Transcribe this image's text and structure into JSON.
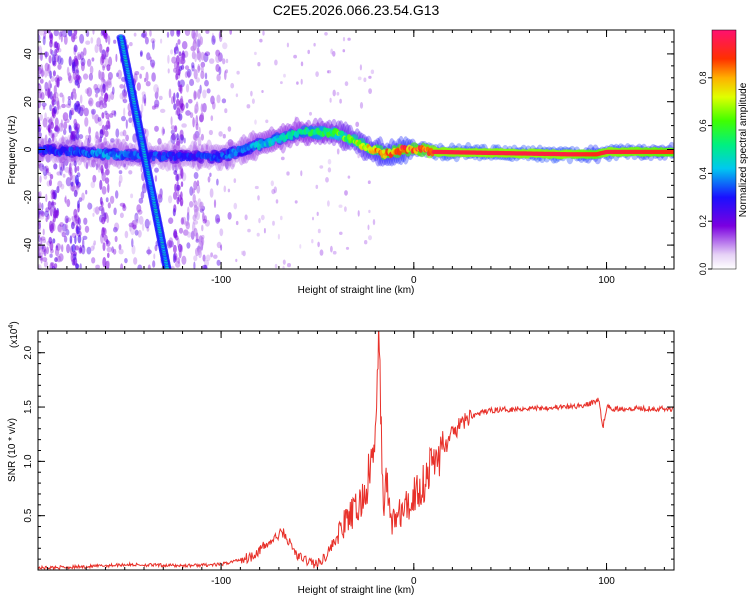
{
  "title": "C2E5.2026.066.23.54.G13",
  "colors": {
    "snr_line": "#e8312a",
    "axis": "#000000",
    "background": "#ffffff"
  },
  "chart_data": [
    {
      "type": "heatmap",
      "title": "C2E5.2026.066.23.54.G13",
      "xlabel": "Height of straight line (km)",
      "ylabel": "Frequency (Hz)",
      "xlim": [
        -195,
        135
      ],
      "ylim": [
        -50,
        50
      ],
      "xticks": [
        -100,
        0,
        100
      ],
      "xtick_labels": [
        "-100",
        "0",
        "100"
      ],
      "yticks": [
        -40,
        -20,
        0,
        20,
        40
      ],
      "ytick_labels": [
        "-40",
        "-20",
        "0",
        "20",
        "40"
      ],
      "colorbar": {
        "label": "Normalized spectral amplitude",
        "range": [
          0.0,
          1.0
        ],
        "ticks": [
          0.0,
          0.2,
          0.4,
          0.6,
          0.8
        ],
        "tick_labels": [
          "0.0",
          "0.2",
          "0.4",
          "0.6",
          "0.8"
        ]
      },
      "features": {
        "main_track": [
          {
            "x": -195,
            "y": 0,
            "amp": 0.3
          },
          {
            "x": -175,
            "y": -1,
            "amp": 0.35
          },
          {
            "x": -160,
            "y": -2,
            "amp": 0.4
          },
          {
            "x": -120,
            "y": -3,
            "amp": 0.3
          },
          {
            "x": -100,
            "y": -3,
            "amp": 0.35
          },
          {
            "x": -80,
            "y": 2,
            "amp": 0.45
          },
          {
            "x": -60,
            "y": 7,
            "amp": 0.5
          },
          {
            "x": -40,
            "y": 7,
            "amp": 0.6
          },
          {
            "x": -25,
            "y": 1,
            "amp": 0.75
          },
          {
            "x": -15,
            "y": -2,
            "amp": 0.85
          },
          {
            "x": -5,
            "y": 0,
            "amp": 0.9
          },
          {
            "x": 5,
            "y": 0,
            "amp": 0.9
          },
          {
            "x": 10,
            "y": -1,
            "amp": 0.95
          },
          {
            "x": 80,
            "y": -2,
            "amp": 0.95
          },
          {
            "x": 95,
            "y": -2,
            "amp": 0.9
          },
          {
            "x": 100,
            "y": -1,
            "amp": 0.95
          },
          {
            "x": 135,
            "y": -1,
            "amp": 0.9
          }
        ],
        "diagonal_track": [
          {
            "x": -152,
            "y": 47
          },
          {
            "x": -128,
            "y": -50
          }
        ]
      }
    },
    {
      "type": "line",
      "xlabel": "Height of straight line (km)",
      "ylabel": "SNR (10 * v/v)",
      "yscale_label": "(x10",
      "yscale_exponent": "4",
      "xlim": [
        -195,
        135
      ],
      "ylim": [
        0,
        2.2
      ],
      "xticks": [
        -100,
        0,
        100
      ],
      "xtick_labels": [
        "-100",
        "0",
        "100"
      ],
      "yticks": [
        0.5,
        1.0,
        1.5,
        2.0
      ],
      "ytick_labels": [
        "0.5",
        "1.0",
        "1.5",
        "2.0"
      ],
      "series": [
        {
          "name": "SNR",
          "color": "#e8312a",
          "x": [
            -195,
            -170,
            -150,
            -120,
            -100,
            -85,
            -75,
            -68,
            -60,
            -50,
            -45,
            -40,
            -35,
            -30,
            -25,
            -22,
            -20,
            -18,
            -16,
            -14,
            -12,
            -8,
            -5,
            -2,
            0,
            5,
            10,
            15,
            20,
            25,
            30,
            40,
            60,
            80,
            90,
            96,
            98,
            100,
            105,
            110,
            120,
            135
          ],
          "y": [
            0.02,
            0.03,
            0.05,
            0.04,
            0.05,
            0.12,
            0.25,
            0.35,
            0.12,
            0.05,
            0.15,
            0.3,
            0.45,
            0.55,
            0.7,
            1.0,
            1.15,
            2.2,
            0.6,
            0.8,
            0.45,
            0.5,
            0.55,
            0.6,
            0.7,
            0.8,
            1.0,
            1.1,
            1.25,
            1.35,
            1.42,
            1.47,
            1.49,
            1.5,
            1.52,
            1.57,
            1.3,
            1.5,
            1.48,
            1.49,
            1.49,
            1.48
          ]
        }
      ]
    }
  ]
}
